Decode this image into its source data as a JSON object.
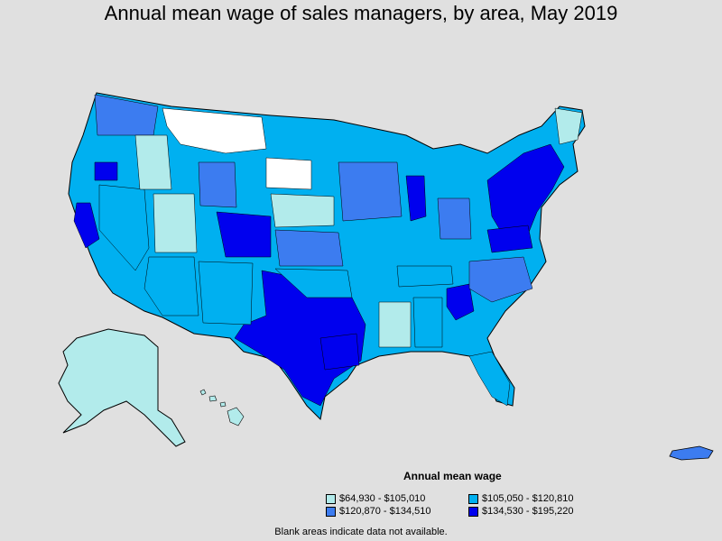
{
  "title": "Annual mean wage of sales managers, by area, May 2019",
  "legend": {
    "title": "Annual mean wage",
    "items": [
      {
        "label": "$64,930 - $105,010",
        "color": "#b2ebeb"
      },
      {
        "label": "$105,050 - $120,810",
        "color": "#00b0f0"
      },
      {
        "label": "$120,870 - $134,510",
        "color": "#3c7cf0"
      },
      {
        "label": "$134,530 - $195,220",
        "color": "#0000ee"
      }
    ]
  },
  "note": "Blank areas indicate data not available.",
  "colors": {
    "background": "#e0e0e0",
    "blank": "#ffffff",
    "border": "#000000"
  }
}
